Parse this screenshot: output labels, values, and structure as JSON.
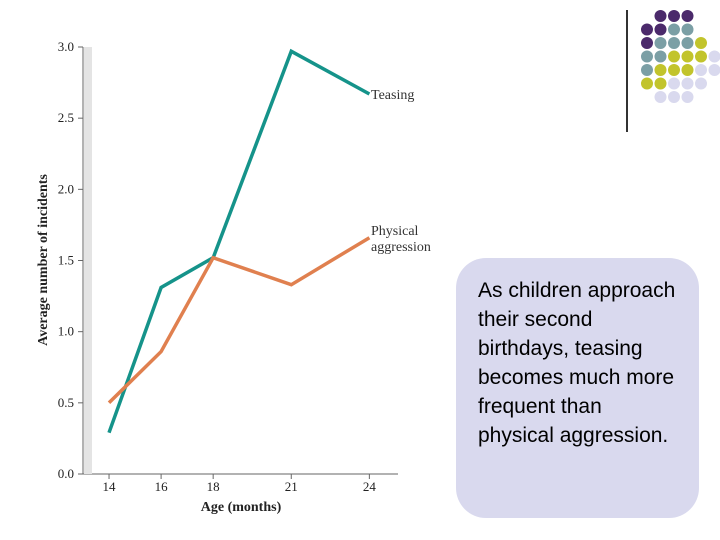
{
  "chart_data": {
    "type": "line",
    "x": [
      14,
      16,
      18,
      21,
      24
    ],
    "xlabel": "Age (months)",
    "ylabel": "Average number of incidents",
    "ylim": [
      0.0,
      3.0
    ],
    "yticks": [
      "0.0",
      "0.5",
      "1.0",
      "1.5",
      "2.0",
      "2.5",
      "3.0"
    ],
    "xticks": [
      "14",
      "16",
      "18",
      "21",
      "24"
    ],
    "grid": false,
    "series": [
      {
        "name": "Teasing",
        "color": "#15938a",
        "values": [
          0.29,
          1.31,
          1.52,
          2.97,
          2.67
        ]
      },
      {
        "name": "Physical aggression",
        "color": "#e0804f",
        "values": [
          0.5,
          0.86,
          1.52,
          1.33,
          1.66
        ]
      }
    ]
  },
  "labels": {
    "teasing": "Teasing",
    "aggression_line1": "Physical",
    "aggression_line2": "aggression"
  },
  "callout": {
    "text": "As children approach their second birthdays, teasing becomes much more frequent than physical aggression."
  },
  "decor": {
    "dot_colors": [
      "#4b2a6b",
      "#7b9fa5",
      "#c2c42c",
      "#d9d9ee"
    ]
  }
}
